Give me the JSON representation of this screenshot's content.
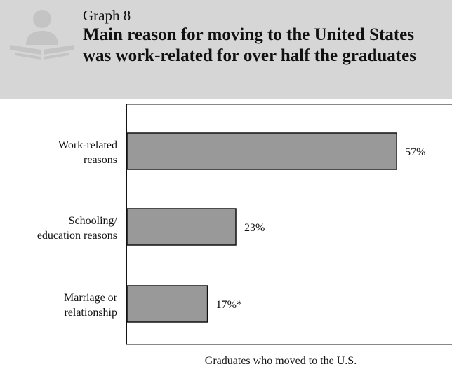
{
  "header": {
    "graph_number": "Graph 8",
    "title": "Main reason for moving to the United States was work-related for over half the graduates",
    "icon": "reader-icon"
  },
  "colors": {
    "header_bg": "#d6d6d6",
    "icon": "#c4c4c4",
    "bar_fill": "#999999",
    "bar_stroke": "#111111"
  },
  "chart_data": {
    "type": "bar",
    "orientation": "horizontal",
    "categories": [
      [
        "Work-related",
        "reasons"
      ],
      [
        "Schooling/",
        "education reasons"
      ],
      [
        "Marriage or",
        "relationship"
      ]
    ],
    "values": [
      57,
      23,
      17
    ],
    "value_labels": [
      "57%",
      "23%",
      "17%*"
    ],
    "xlabel": "Graduates who moved to the U.S.",
    "ylabel": "",
    "xlim": [
      0,
      70
    ],
    "grid": false
  }
}
